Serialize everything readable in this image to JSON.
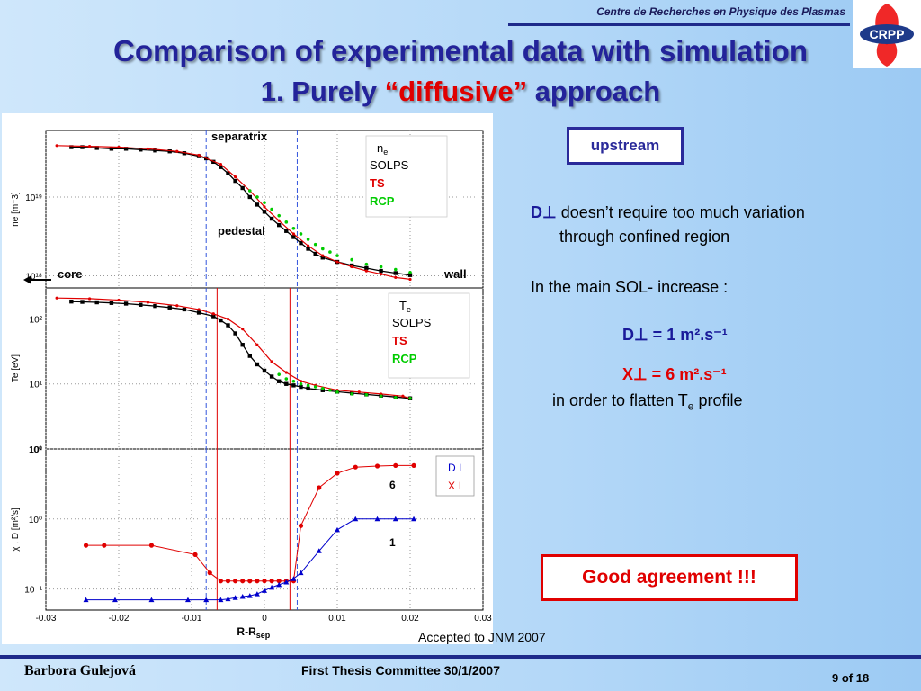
{
  "header": {
    "institute": "Centre de Recherches en Physique des Plasmas",
    "logo_text": "CRPP",
    "title_line1": "Comparison of experimental data with simulation",
    "title_line2_prefix": "1.  Purely ",
    "title_line2_highlight": "“diffusive”",
    "title_line2_suffix": " approach"
  },
  "colors": {
    "title": "#23239a",
    "solps": "#000000",
    "ts": "#e00000",
    "rcp": "#00cc00",
    "chi": "#e00000",
    "d": "#0000cc"
  },
  "right_panel": {
    "upstream_label": "upstream",
    "d_symbol": "D⊥",
    "d_text_line1": "doesn’t require too much variation",
    "d_text_line2": "through confined region",
    "sol_text": "In the main SOL- increase :",
    "d_value": "D⊥ = 1 m².s⁻¹",
    "x_value": "X⊥ = 6 m².s⁻¹",
    "flatten_prefix": "in order to flatten T",
    "flatten_sub": "e",
    "flatten_suffix": " profile",
    "good_agreement": "Good agreement !!!"
  },
  "footer": {
    "accepted": "Accepted to JNM 2007",
    "author": "Barbora Gulejová",
    "event": "First Thesis Committee 30/1/2007",
    "page": "9 of 18"
  },
  "chart_data": [
    {
      "type": "scatter",
      "panel": "ne",
      "ylabel": "ne [m⁻3]",
      "yscale": "log",
      "ylim": [
        7e+17,
        7e+19
      ],
      "xlim": [
        -0.03,
        0.03
      ],
      "yticks": [
        {
          "v": 1e+18,
          "label": "10¹⁸"
        },
        {
          "v": 1e+19,
          "label": "10¹⁹"
        }
      ],
      "annotations": {
        "separatrix": "separatrix",
        "pedestal": "pedestal",
        "core": "core",
        "wall": "wall"
      },
      "legend": {
        "title": "n",
        "title_sub": "e",
        "items": [
          "SOLPS",
          "TS",
          "RCP"
        ]
      },
      "series": [
        {
          "name": "SOLPS",
          "color": "#000000",
          "x": [
            -0.0265,
            -0.025,
            -0.023,
            -0.021,
            -0.019,
            -0.017,
            -0.015,
            -0.013,
            -0.011,
            -0.009,
            -0.008,
            -0.007,
            -0.006,
            -0.005,
            -0.004,
            -0.003,
            -0.002,
            -0.001,
            0,
            0.001,
            0.002,
            0.003,
            0.004,
            0.005,
            0.006,
            0.007,
            0.008,
            0.01,
            0.012,
            0.014,
            0.016,
            0.018,
            0.02
          ],
          "y": [
            4.3e+19,
            4.3e+19,
            4.2e+19,
            4.1e+19,
            4.1e+19,
            4e+19,
            3.9e+19,
            3.8e+19,
            3.6e+19,
            3.3e+19,
            3.1e+19,
            2.8e+19,
            2.4e+19,
            2e+19,
            1.6e+19,
            1.3e+19,
            1e+19,
            8e+18,
            6.5e+18,
            5.3e+18,
            4.4e+18,
            3.7e+18,
            3.1e+18,
            2.6e+18,
            2.2e+18,
            1.9e+18,
            1.7e+18,
            1.5e+18,
            1.35e+18,
            1.25e+18,
            1.15e+18,
            1.08e+18,
            1.02e+18
          ]
        },
        {
          "name": "TS",
          "color": "#e00000",
          "x": [
            -0.0285,
            -0.024,
            -0.02,
            -0.016,
            -0.012,
            -0.009,
            -0.006,
            -0.004,
            -0.002,
            0,
            0.002,
            0.004,
            0.006,
            0.008,
            0.01,
            0.012,
            0.014,
            0.016,
            0.018,
            0.02
          ],
          "y": [
            4.5e+19,
            4.4e+19,
            4.3e+19,
            4.1e+19,
            3.8e+19,
            3.4e+19,
            2.6e+19,
            1.8e+19,
            1.2e+19,
            7.5e+18,
            5e+18,
            3.4e+18,
            2.4e+18,
            1.8e+18,
            1.5e+18,
            1.3e+18,
            1.15e+18,
            1.05e+18,
            9.5e+17,
            9e+17
          ]
        },
        {
          "name": "RCP",
          "color": "#00cc00",
          "x": [
            -0.002,
            -0.001,
            0,
            0.001,
            0.002,
            0.003,
            0.004,
            0.005,
            0.006,
            0.007,
            0.008,
            0.009,
            0.01,
            0.012,
            0.014,
            0.016,
            0.018,
            0.02
          ],
          "y": [
            1.2e+19,
            1e+19,
            8.5e+18,
            7e+18,
            5.8e+18,
            4.8e+18,
            4e+18,
            3.4e+18,
            2.9e+18,
            2.5e+18,
            2.2e+18,
            2e+18,
            1.8e+18,
            1.6e+18,
            1.4e+18,
            1.3e+18,
            1.2e+18,
            1.1e+18
          ]
        }
      ]
    },
    {
      "type": "scatter",
      "panel": "Te",
      "ylabel": "Te [eV]",
      "yscale": "log",
      "ylim": [
        1,
        300
      ],
      "xlim": [
        -0.03,
        0.03
      ],
      "yticks": [
        {
          "v": 1,
          "label": "10⁰"
        },
        {
          "v": 10,
          "label": "10¹"
        },
        {
          "v": 100,
          "label": "10²"
        }
      ],
      "legend": {
        "title": "T",
        "title_sub": "e",
        "items": [
          "SOLPS",
          "TS",
          "RCP"
        ]
      },
      "series": [
        {
          "name": "SOLPS",
          "color": "#000000",
          "x": [
            -0.0265,
            -0.025,
            -0.023,
            -0.021,
            -0.019,
            -0.017,
            -0.015,
            -0.013,
            -0.011,
            -0.009,
            -0.007,
            -0.006,
            -0.005,
            -0.004,
            -0.003,
            -0.002,
            -0.001,
            0,
            0.001,
            0.002,
            0.003,
            0.004,
            0.005,
            0.006,
            0.008,
            0.01,
            0.012,
            0.014,
            0.016,
            0.018,
            0.02
          ],
          "y": [
            185,
            183,
            180,
            176,
            172,
            165,
            158,
            150,
            140,
            125,
            110,
            95,
            80,
            60,
            40,
            27,
            20,
            16,
            13,
            11,
            10,
            9.5,
            9,
            8.5,
            8,
            7.6,
            7.2,
            6.9,
            6.6,
            6.3,
            6
          ]
        },
        {
          "name": "TS",
          "color": "#e00000",
          "x": [
            -0.0285,
            -0.024,
            -0.02,
            -0.016,
            -0.012,
            -0.009,
            -0.007,
            -0.005,
            -0.003,
            -0.001,
            0.001,
            0.003,
            0.005,
            0.007,
            0.01,
            0.013,
            0.016,
            0.019,
            0.02
          ],
          "y": [
            210,
            205,
            195,
            180,
            160,
            140,
            120,
            100,
            70,
            40,
            22,
            15,
            11,
            9.5,
            8,
            7.5,
            7,
            6.5,
            6
          ]
        },
        {
          "name": "RCP",
          "color": "#00cc00",
          "x": [
            0.002,
            0.003,
            0.004,
            0.005,
            0.006,
            0.007,
            0.008,
            0.009,
            0.01,
            0.012,
            0.014,
            0.016,
            0.018,
            0.02
          ],
          "y": [
            14,
            12,
            11,
            10,
            9.5,
            9,
            8.5,
            8,
            7.5,
            7,
            6.8,
            6.5,
            6.2,
            6
          ]
        }
      ]
    },
    {
      "type": "line",
      "panel": "transport",
      "ylabel": "χ , D [m²/s]",
      "xlabel": "R-R",
      "xlabel_sub": "sep",
      "yscale": "log",
      "ylim": [
        0.05,
        10
      ],
      "xlim": [
        -0.03,
        0.03
      ],
      "xticks": [
        -0.03,
        -0.02,
        -0.01,
        0,
        0.01,
        0.02,
        0.03
      ],
      "xticklabels": [
        "-0.03",
        "-0.02",
        "-0.01",
        "0",
        "0.01",
        "0.02",
        "0.03"
      ],
      "yticks": [
        {
          "v": 0.1,
          "label": "10⁻¹"
        },
        {
          "v": 1,
          "label": "10⁰"
        },
        {
          "v": 10,
          "label": "10¹"
        }
      ],
      "annotations": {
        "chi_value": "6",
        "d_value": "1"
      },
      "legend": {
        "items": [
          "D⊥",
          "X⊥"
        ]
      },
      "series": [
        {
          "name": "X⊥",
          "color": "#e00000",
          "marker": "circle",
          "x": [
            -0.0245,
            -0.022,
            -0.0155,
            -0.0095,
            -0.0075,
            -0.006,
            -0.005,
            -0.004,
            -0.003,
            -0.002,
            -0.001,
            0,
            0.001,
            0.002,
            0.003,
            0.004,
            0.005,
            0.0075,
            0.01,
            0.0125,
            0.0155,
            0.018,
            0.0205
          ],
          "y": [
            0.42,
            0.42,
            0.42,
            0.31,
            0.17,
            0.13,
            0.13,
            0.13,
            0.13,
            0.13,
            0.13,
            0.13,
            0.13,
            0.13,
            0.13,
            0.13,
            0.8,
            2.8,
            4.5,
            5.5,
            5.7,
            5.8,
            5.8
          ]
        },
        {
          "name": "D⊥",
          "color": "#0000cc",
          "marker": "triangle",
          "x": [
            -0.0245,
            -0.0205,
            -0.0155,
            -0.0105,
            -0.008,
            -0.006,
            -0.005,
            -0.004,
            -0.003,
            -0.002,
            -0.001,
            0,
            0.001,
            0.002,
            0.003,
            0.004,
            0.005,
            0.0075,
            0.01,
            0.0125,
            0.0155,
            0.018,
            0.0205
          ],
          "y": [
            0.07,
            0.07,
            0.07,
            0.07,
            0.07,
            0.07,
            0.072,
            0.075,
            0.078,
            0.08,
            0.085,
            0.095,
            0.105,
            0.115,
            0.125,
            0.14,
            0.17,
            0.35,
            0.7,
            1,
            1,
            1,
            1
          ]
        }
      ]
    }
  ]
}
